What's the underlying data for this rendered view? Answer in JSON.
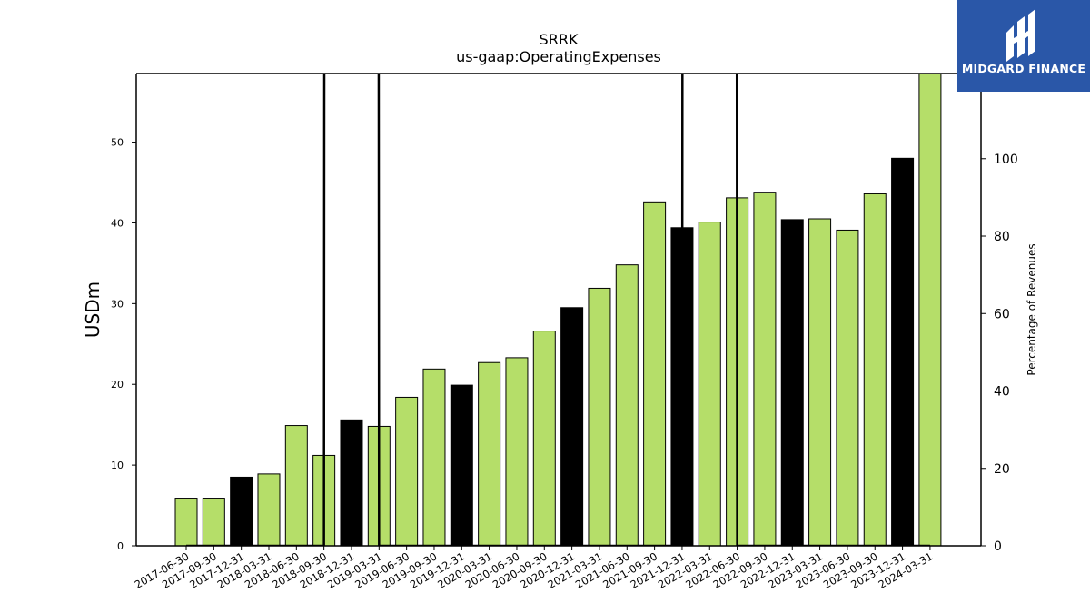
{
  "brand": {
    "name": "MIDGARD FINANCE",
    "logo_color": "#2a57a8"
  },
  "chart_data": {
    "type": "bar",
    "title": "SRRK",
    "subtitle": "us-gaap:OperatingExpenses",
    "ylabel": "USDm",
    "ylabel_right": "Percentage of Revenues",
    "ylim": [
      0,
      58.5
    ],
    "ylim_right": [
      0,
      122
    ],
    "yticks": [
      0,
      10,
      20,
      30,
      40,
      50
    ],
    "yticks_right": [
      0,
      20,
      40,
      60,
      80,
      100
    ],
    "grid": false,
    "colors": {
      "quarter": "#b5de69",
      "year_end": "#000000",
      "line": "#000000"
    },
    "categories": [
      "2017-06-30",
      "2017-09-30",
      "2017-12-31",
      "2018-03-31",
      "2018-06-30",
      "2018-09-30",
      "2018-12-31",
      "2019-03-31",
      "2019-06-30",
      "2019-09-30",
      "2019-12-31",
      "2020-03-31",
      "2020-06-30",
      "2020-09-30",
      "2020-12-31",
      "2021-03-31",
      "2021-06-30",
      "2021-09-30",
      "2021-12-31",
      "2022-03-31",
      "2022-06-30",
      "2022-09-30",
      "2022-12-31",
      "2023-03-31",
      "2023-06-30",
      "2023-09-30",
      "2023-12-31",
      "2024-03-31"
    ],
    "values": [
      5.9,
      5.9,
      8.5,
      8.9,
      14.9,
      11.2,
      15.6,
      14.8,
      18.4,
      21.9,
      19.9,
      22.7,
      23.3,
      26.6,
      29.5,
      31.9,
      34.8,
      42.6,
      39.4,
      40.1,
      43.1,
      43.8,
      40.4,
      40.5,
      39.1,
      43.6,
      48.0,
      58.5
    ],
    "year_end": [
      false,
      false,
      true,
      false,
      false,
      false,
      true,
      false,
      false,
      false,
      true,
      false,
      false,
      false,
      true,
      false,
      false,
      false,
      true,
      false,
      false,
      false,
      true,
      false,
      false,
      false,
      true,
      false
    ],
    "line_series": {
      "name": "Percentage of Revenues",
      "values": [
        0,
        0,
        0,
        0,
        0,
        0,
        10000,
        0,
        0,
        0,
        0,
        0,
        0,
        0,
        0,
        0,
        0,
        0,
        0,
        10000,
        0,
        0,
        0,
        0,
        0,
        0,
        0,
        0
      ]
    }
  }
}
